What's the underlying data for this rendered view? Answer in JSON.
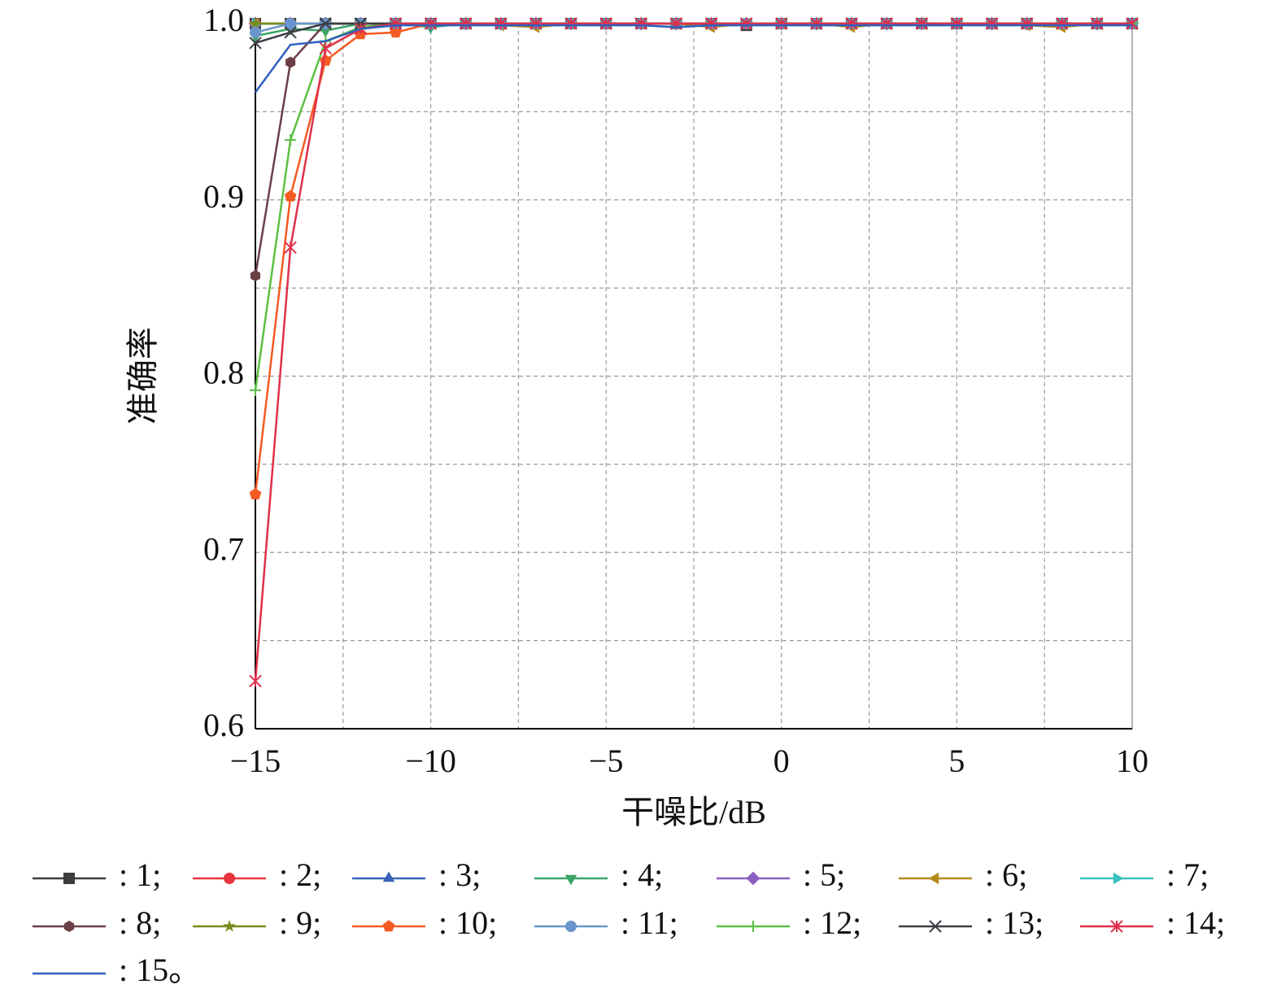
{
  "chart_data": {
    "type": "line",
    "y_label": "准确率",
    "x_label": "干噪比/dB",
    "x": [
      -15,
      -14,
      -13,
      -12,
      -11,
      -10,
      -9,
      -8,
      -7,
      -6,
      -5,
      -4,
      -3,
      -2,
      -1,
      0,
      1,
      2,
      3,
      4,
      5,
      6,
      7,
      8,
      9,
      10
    ],
    "xlim": [
      -15,
      10
    ],
    "xticks": [
      {
        "value": -15,
        "label": "−15"
      },
      {
        "value": -10,
        "label": "−10"
      },
      {
        "value": -5,
        "label": "−5"
      },
      0,
      5,
      10
    ],
    "x_minor_ticks": [
      -12.5,
      -7.5,
      -2.5,
      2.5,
      7.5
    ],
    "ylim": [
      0.6,
      1.0
    ],
    "yticks": [
      0.6,
      0.7,
      0.8,
      0.9,
      {
        "value": 1.0,
        "label": "1.0"
      }
    ],
    "y_minor_ticks": [
      0.65,
      0.75,
      0.85,
      0.95
    ],
    "grid": true,
    "series": [
      {
        "name": ": 1;",
        "color": "#3c3c3c",
        "marker": "square",
        "values": [
          1,
          1,
          1,
          1,
          1,
          1,
          1,
          1,
          1,
          1,
          1,
          1,
          1,
          1,
          0.999,
          1,
          1,
          1,
          1,
          1,
          1,
          1,
          1,
          1,
          1,
          1
        ]
      },
      {
        "name": ": 2;",
        "color": "#e8343f",
        "marker": "circle",
        "values": [
          1,
          1,
          1,
          1,
          1,
          1,
          1,
          1,
          1,
          1,
          1,
          1,
          1,
          1,
          1,
          1,
          1,
          1,
          1,
          1,
          1,
          1,
          1,
          1,
          1,
          1
        ]
      },
      {
        "name": ": 3;",
        "color": "#3a62b8",
        "marker": "triangle",
        "values": [
          1,
          1,
          1,
          1,
          1,
          1,
          1,
          1,
          1,
          1,
          1,
          1,
          1,
          1,
          1,
          1,
          1,
          1,
          1,
          1,
          1,
          1,
          1,
          1,
          1,
          1
        ]
      },
      {
        "name": ": 4;",
        "color": "#3aa564",
        "marker": "triangle-down",
        "values": [
          0.993,
          0.997,
          0.996,
          1,
          1,
          0.998,
          1,
          1,
          1,
          1,
          1,
          1,
          1,
          1,
          1,
          1,
          1,
          1,
          1,
          1,
          1,
          1,
          1,
          1,
          1,
          1
        ]
      },
      {
        "name": ": 5;",
        "color": "#8a5fc0",
        "marker": "diamond",
        "values": [
          1,
          1,
          1,
          1,
          1,
          1,
          1,
          1,
          1,
          1,
          1,
          1,
          1,
          1,
          1,
          1,
          1,
          1,
          1,
          1,
          1,
          1,
          1,
          1,
          1,
          1
        ]
      },
      {
        "name": ": 6;",
        "color": "#b58a1d",
        "marker": "triangle-left",
        "values": [
          1,
          1,
          1,
          1,
          1,
          1,
          1,
          0.999,
          0.998,
          1,
          1,
          1,
          1,
          0.998,
          1,
          1,
          1,
          0.998,
          1,
          1,
          1,
          1,
          0.999,
          0.998,
          1,
          1
        ]
      },
      {
        "name": ": 7;",
        "color": "#3cc0c0",
        "marker": "triangle-right",
        "values": [
          1,
          1,
          1,
          1,
          1,
          1,
          1,
          1,
          1,
          1,
          1,
          1,
          1,
          1,
          1,
          1,
          1,
          1,
          1,
          1,
          1,
          1,
          1,
          1,
          1,
          1
        ]
      },
      {
        "name": ": 8;",
        "color": "#6b3f46",
        "marker": "hexagon",
        "values": [
          0.857,
          0.978,
          1,
          1,
          1,
          1,
          1,
          1,
          1,
          1,
          1,
          1,
          1,
          1,
          1,
          1,
          1,
          1,
          1,
          1,
          1,
          1,
          1,
          1,
          1,
          1
        ]
      },
      {
        "name": ": 9;",
        "color": "#7a8a1a",
        "marker": "star",
        "values": [
          1,
          1,
          1,
          1,
          1,
          1,
          1,
          1,
          1,
          1,
          1,
          1,
          1,
          1,
          1,
          1,
          1,
          1,
          1,
          1,
          1,
          1,
          1,
          1,
          1,
          1
        ]
      },
      {
        "name": ": 10;",
        "color": "#f45a22",
        "marker": "pentagon",
        "values": [
          0.733,
          0.902,
          0.979,
          0.994,
          0.995,
          1,
          1,
          1,
          1,
          1,
          1,
          1,
          1,
          1,
          1,
          1,
          1,
          1,
          1,
          1,
          1,
          1,
          1,
          1,
          1,
          1
        ]
      },
      {
        "name": ": 11;",
        "color": "#6a95cc",
        "marker": "circle",
        "values": [
          0.995,
          1,
          1,
          1,
          1,
          1,
          1,
          1,
          1,
          1,
          1,
          1,
          1,
          1,
          1,
          1,
          1,
          1,
          1,
          1,
          1,
          1,
          1,
          1,
          1,
          1
        ]
      },
      {
        "name": ": 12;",
        "color": "#5cc043",
        "marker": "plus",
        "values": [
          0.792,
          0.934,
          0.99,
          0.998,
          1,
          1,
          1,
          1,
          1,
          1,
          1,
          1,
          1,
          1,
          1,
          1,
          1,
          1,
          1,
          1,
          1,
          1,
          1,
          1,
          1,
          1
        ]
      },
      {
        "name": ": 13;",
        "color": "#3c3c44",
        "marker": "x",
        "values": [
          0.989,
          0.995,
          1,
          1,
          1,
          1,
          1,
          1,
          1,
          1,
          1,
          1,
          1,
          1,
          1,
          1,
          1,
          1,
          1,
          1,
          1,
          1,
          1,
          1,
          1,
          1
        ]
      },
      {
        "name": ": 14;",
        "color": "#e0304a",
        "marker": "asterisk",
        "values": [
          0.627,
          0.873,
          0.986,
          0.997,
          1,
          1,
          1,
          1,
          1,
          1,
          1,
          1,
          1,
          1,
          1,
          1,
          1,
          1,
          1,
          1,
          1,
          1,
          1,
          1,
          1,
          1
        ]
      },
      {
        "name": ": 15。",
        "color": "#2f5fbf",
        "marker": "none",
        "values": [
          0.961,
          0.988,
          0.99,
          0.997,
          0.999,
          0.999,
          0.999,
          0.999,
          0.999,
          0.999,
          0.999,
          0.999,
          0.998,
          0.999,
          0.999,
          0.999,
          0.999,
          0.999,
          0.999,
          0.999,
          0.999,
          0.999,
          0.999,
          0.999,
          0.999,
          0.999
        ]
      }
    ]
  }
}
